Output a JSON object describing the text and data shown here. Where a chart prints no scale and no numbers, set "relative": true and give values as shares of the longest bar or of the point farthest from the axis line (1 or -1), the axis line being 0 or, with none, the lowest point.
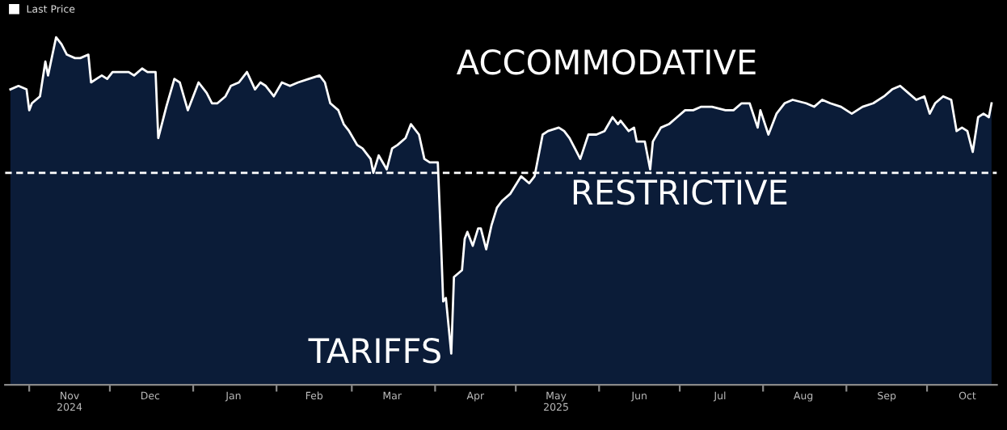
{
  "chart_data": {
    "type": "area",
    "relative": true,
    "legend": "top left",
    "grid": false,
    "annotations": [
      "ACCOMMODATIVE",
      "RESTRICTIVE",
      {
        "text": "TARIFFS",
        "x": "2025-04-07",
        "y": 0.09
      }
    ],
    "xlim": [
      "2024-10-23",
      "2025-10-27"
    ],
    "xticks": [
      {
        "value": "2024-11-01",
        "label": null
      },
      {
        "value": "2024-11-16",
        "label": "Nov\n2024"
      },
      {
        "value": "2024-12-01",
        "label": null
      },
      {
        "value": "2024-12-16",
        "label": "Dec"
      },
      {
        "value": "2025-01-01",
        "label": null
      },
      {
        "value": "2025-01-16",
        "label": "Jan"
      },
      {
        "value": "2025-02-01",
        "label": null
      },
      {
        "value": "2025-02-15",
        "label": "Feb"
      },
      {
        "value": "2025-03-01",
        "label": null
      },
      {
        "value": "2025-03-16",
        "label": "Mar"
      },
      {
        "value": "2025-04-01",
        "label": null
      },
      {
        "value": "2025-04-16",
        "label": "Apr"
      },
      {
        "value": "2025-05-01",
        "label": null
      },
      {
        "value": "2025-05-16",
        "label": "May\n2025"
      },
      {
        "value": "2025-06-01",
        "label": null
      },
      {
        "value": "2025-06-16",
        "label": "Jun"
      },
      {
        "value": "2025-07-01",
        "label": null
      },
      {
        "value": "2025-07-16",
        "label": "Jul"
      },
      {
        "value": "2025-08-01",
        "label": null
      },
      {
        "value": "2025-08-16",
        "label": "Aug"
      },
      {
        "value": "2025-09-01",
        "label": null
      },
      {
        "value": "2025-09-16",
        "label": "Sep"
      },
      {
        "value": "2025-10-01",
        "label": null
      },
      {
        "value": "2025-10-16",
        "label": "Oct"
      }
    ],
    "ref_lines": [
      {
        "axis": "y",
        "value": 0.61,
        "color": "#ffffff",
        "line_style": "dashed"
      }
    ],
    "series": [
      {
        "name": "Last Price",
        "color": "#ffffff",
        "x": [
          "2024-10-25",
          "2024-10-28",
          "2024-10-31",
          "2024-11-01",
          "2024-11-02",
          "2024-11-05",
          "2024-11-07",
          "2024-11-08",
          "2024-11-11",
          "2024-11-13",
          "2024-11-15",
          "2024-11-18",
          "2024-11-20",
          "2024-11-23",
          "2024-11-24",
          "2024-11-26",
          "2024-11-28",
          "2024-11-30",
          "2024-12-02",
          "2024-12-04",
          "2024-12-08",
          "2024-12-10",
          "2024-12-13",
          "2024-12-15",
          "2024-12-18",
          "2024-12-19",
          "2024-12-22",
          "2024-12-25",
          "2024-12-27",
          "2024-12-30",
          "2025-01-01",
          "2025-01-03",
          "2025-01-06",
          "2025-01-08",
          "2025-01-10",
          "2025-01-13",
          "2025-01-15",
          "2025-01-18",
          "2025-01-21",
          "2025-01-24",
          "2025-01-26",
          "2025-01-28",
          "2025-01-31",
          "2025-02-03",
          "2025-02-06",
          "2025-02-09",
          "2025-02-13",
          "2025-02-17",
          "2025-02-19",
          "2025-02-21",
          "2025-02-24",
          "2025-02-26",
          "2025-02-28",
          "2025-03-03",
          "2025-03-05",
          "2025-03-08",
          "2025-03-09",
          "2025-03-11",
          "2025-03-14",
          "2025-03-16",
          "2025-03-18",
          "2025-03-21",
          "2025-03-23",
          "2025-03-26",
          "2025-03-28",
          "2025-03-30",
          "2025-04-02",
          "2025-04-03",
          "2025-04-04",
          "2025-04-05",
          "2025-04-06",
          "2025-04-07",
          "2025-04-08",
          "2025-04-11",
          "2025-04-12",
          "2025-04-13",
          "2025-04-15",
          "2025-04-17",
          "2025-04-18",
          "2025-04-20",
          "2025-04-22",
          "2025-04-24",
          "2025-04-26",
          "2025-04-29",
          "2025-05-03",
          "2025-05-06",
          "2025-05-08",
          "2025-05-11",
          "2025-05-13",
          "2025-05-17",
          "2025-05-19",
          "2025-05-21",
          "2025-05-23",
          "2025-05-25",
          "2025-05-28",
          "2025-05-31",
          "2025-06-03",
          "2025-06-06",
          "2025-06-08",
          "2025-06-09",
          "2025-06-12",
          "2025-06-14",
          "2025-06-15",
          "2025-06-18",
          "2025-06-20",
          "2025-06-21",
          "2025-06-24",
          "2025-06-27",
          "2025-06-30",
          "2025-07-03",
          "2025-07-06",
          "2025-07-09",
          "2025-07-13",
          "2025-07-18",
          "2025-07-21",
          "2025-07-24",
          "2025-07-27",
          "2025-07-30",
          "2025-07-31",
          "2025-08-03",
          "2025-08-06",
          "2025-08-09",
          "2025-08-12",
          "2025-08-17",
          "2025-08-20",
          "2025-08-23",
          "2025-08-26",
          "2025-08-30",
          "2025-09-03",
          "2025-09-07",
          "2025-09-11",
          "2025-09-15",
          "2025-09-18",
          "2025-09-21",
          "2025-09-24",
          "2025-09-27",
          "2025-09-30",
          "2025-10-02",
          "2025-10-04",
          "2025-10-07",
          "2025-10-10",
          "2025-10-12",
          "2025-10-14",
          "2025-10-16",
          "2025-10-18",
          "2025-10-20",
          "2025-10-22",
          "2025-10-24",
          "2025-10-25"
        ],
        "values": [
          0.85,
          0.86,
          0.85,
          0.79,
          0.81,
          0.83,
          0.93,
          0.89,
          1.0,
          0.98,
          0.95,
          0.94,
          0.94,
          0.95,
          0.87,
          0.88,
          0.89,
          0.88,
          0.9,
          0.9,
          0.9,
          0.89,
          0.91,
          0.9,
          0.9,
          0.71,
          0.8,
          0.88,
          0.87,
          0.79,
          0.83,
          0.87,
          0.84,
          0.81,
          0.81,
          0.83,
          0.86,
          0.87,
          0.9,
          0.85,
          0.87,
          0.86,
          0.83,
          0.87,
          0.86,
          0.87,
          0.88,
          0.89,
          0.87,
          0.81,
          0.79,
          0.75,
          0.73,
          0.69,
          0.68,
          0.65,
          0.61,
          0.66,
          0.62,
          0.68,
          0.69,
          0.71,
          0.75,
          0.72,
          0.65,
          0.64,
          0.64,
          0.45,
          0.24,
          0.25,
          0.17,
          0.09,
          0.31,
          0.33,
          0.42,
          0.44,
          0.4,
          0.45,
          0.45,
          0.39,
          0.46,
          0.51,
          0.53,
          0.55,
          0.6,
          0.58,
          0.6,
          0.72,
          0.73,
          0.74,
          0.73,
          0.71,
          0.68,
          0.65,
          0.72,
          0.72,
          0.73,
          0.77,
          0.75,
          0.76,
          0.73,
          0.74,
          0.7,
          0.7,
          0.62,
          0.7,
          0.74,
          0.75,
          0.77,
          0.79,
          0.79,
          0.8,
          0.8,
          0.79,
          0.79,
          0.81,
          0.81,
          0.74,
          0.79,
          0.72,
          0.78,
          0.81,
          0.82,
          0.81,
          0.8,
          0.82,
          0.81,
          0.8,
          0.78,
          0.8,
          0.81,
          0.83,
          0.85,
          0.86,
          0.84,
          0.82,
          0.83,
          0.78,
          0.81,
          0.83,
          0.82,
          0.73,
          0.74,
          0.73,
          0.67,
          0.77,
          0.78,
          0.77,
          0.81
        ]
      }
    ]
  }
}
